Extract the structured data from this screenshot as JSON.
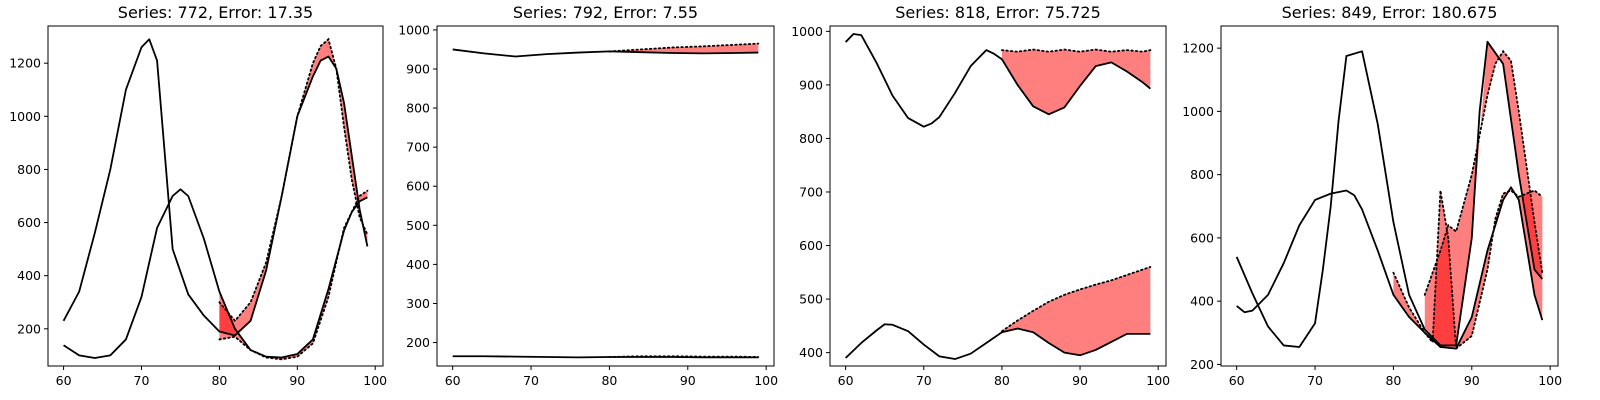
{
  "chart_data": [
    {
      "type": "line",
      "title": "Series: 772, Error: 17.35",
      "xlim": [
        58,
        101
      ],
      "ylim": [
        60,
        1340
      ],
      "xticks": [
        60,
        70,
        80,
        90,
        100
      ],
      "yticks": [
        200,
        400,
        600,
        800,
        1000,
        1200
      ],
      "series": [
        {
          "role": "actual",
          "x": [
            60,
            62,
            64,
            66,
            68,
            70,
            71,
            72,
            74,
            76,
            78,
            80,
            82,
            84,
            86,
            88,
            90,
            92,
            93,
            94,
            95,
            96,
            97,
            98,
            99
          ],
          "values": [
            230,
            340,
            560,
            800,
            1100,
            1260,
            1290,
            1210,
            500,
            330,
            250,
            190,
            175,
            230,
            420,
            700,
            1000,
            1150,
            1210,
            1225,
            1180,
            1050,
            850,
            650,
            510
          ]
        },
        {
          "role": "actual",
          "x": [
            60,
            62,
            64,
            66,
            68,
            70,
            72,
            74,
            75,
            76,
            78,
            80,
            82,
            84,
            86,
            88,
            90,
            92,
            94,
            96,
            97,
            98,
            99
          ],
          "values": [
            138,
            100,
            90,
            100,
            160,
            320,
            580,
            700,
            725,
            700,
            540,
            340,
            200,
            120,
            95,
            92,
            105,
            160,
            350,
            570,
            640,
            680,
            695
          ]
        },
        {
          "role": "forecast",
          "x": [
            80,
            81,
            82,
            84,
            86,
            88,
            90,
            92,
            93,
            94,
            95,
            96,
            97,
            98,
            99
          ],
          "values": [
            300,
            265,
            230,
            300,
            450,
            700,
            1000,
            1200,
            1265,
            1290,
            1180,
            960,
            760,
            620,
            555
          ],
          "base_series": 0
        },
        {
          "role": "forecast",
          "x": [
            80,
            82,
            84,
            86,
            88,
            90,
            92,
            94,
            96,
            97,
            98,
            99
          ],
          "values": [
            160,
            170,
            120,
            92,
            85,
            95,
            145,
            320,
            580,
            640,
            700,
            720
          ],
          "base_series": 1
        }
      ]
    },
    {
      "type": "line",
      "title": "Series: 792, Error: 7.55",
      "xlim": [
        58,
        101
      ],
      "ylim": [
        140,
        1010
      ],
      "xticks": [
        60,
        70,
        80,
        90,
        100
      ],
      "yticks": [
        200,
        300,
        400,
        500,
        600,
        700,
        800,
        900,
        1000
      ],
      "series": [
        {
          "role": "actual",
          "x": [
            60,
            64,
            68,
            72,
            76,
            80,
            84,
            88,
            92,
            96,
            99
          ],
          "values": [
            950,
            940,
            932,
            938,
            942,
            945,
            943,
            941,
            940,
            941,
            942
          ]
        },
        {
          "role": "actual",
          "x": [
            60,
            64,
            68,
            72,
            76,
            80,
            84,
            88,
            92,
            96,
            99
          ],
          "values": [
            165,
            165,
            164,
            163,
            162,
            163,
            163,
            163,
            162,
            162,
            162
          ]
        },
        {
          "role": "forecast",
          "x": [
            80,
            84,
            88,
            92,
            96,
            99
          ],
          "values": [
            945,
            950,
            955,
            958,
            962,
            965
          ],
          "base_series": 0
        },
        {
          "role": "forecast",
          "x": [
            80,
            84,
            88,
            92,
            96,
            99
          ],
          "values": [
            163,
            165,
            165,
            164,
            164,
            163
          ],
          "base_series": 1
        }
      ]
    },
    {
      "type": "line",
      "title": "Series: 818, Error: 75.725",
      "xlim": [
        58,
        101
      ],
      "ylim": [
        375,
        1010
      ],
      "xticks": [
        60,
        70,
        80,
        90,
        100
      ],
      "yticks": [
        400,
        500,
        600,
        700,
        800,
        900,
        1000
      ],
      "series": [
        {
          "role": "actual",
          "x": [
            60,
            61,
            62,
            64,
            66,
            68,
            70,
            71,
            72,
            74,
            76,
            78,
            79,
            80,
            82,
            84,
            86,
            88,
            90,
            92,
            94,
            96,
            98,
            99
          ],
          "values": [
            980,
            995,
            993,
            940,
            880,
            838,
            822,
            828,
            840,
            885,
            935,
            965,
            958,
            948,
            900,
            860,
            845,
            858,
            898,
            935,
            942,
            925,
            905,
            893
          ]
        },
        {
          "role": "actual",
          "x": [
            60,
            62,
            64,
            65,
            66,
            68,
            70,
            72,
            74,
            76,
            78,
            80,
            82,
            84,
            86,
            88,
            90,
            92,
            94,
            96,
            98,
            99
          ],
          "values": [
            390,
            418,
            442,
            453,
            452,
            440,
            415,
            393,
            388,
            398,
            418,
            438,
            445,
            438,
            418,
            400,
            395,
            405,
            420,
            435,
            435,
            435
          ]
        },
        {
          "role": "forecast",
          "x": [
            80,
            82,
            84,
            86,
            88,
            90,
            92,
            94,
            96,
            98,
            99
          ],
          "values": [
            965,
            962,
            966,
            962,
            966,
            962,
            966,
            962,
            965,
            962,
            965
          ],
          "base_series": 0
        },
        {
          "role": "forecast",
          "x": [
            80,
            82,
            84,
            86,
            88,
            90,
            92,
            94,
            96,
            98,
            99
          ],
          "values": [
            440,
            460,
            478,
            495,
            508,
            518,
            527,
            535,
            545,
            555,
            560
          ],
          "base_series": 1
        }
      ]
    },
    {
      "type": "line",
      "title": "Series: 849, Error: 180.675",
      "xlim": [
        58,
        101
      ],
      "ylim": [
        195,
        1270
      ],
      "xticks": [
        60,
        70,
        80,
        90,
        100
      ],
      "yticks": [
        200,
        400,
        600,
        800,
        1000,
        1200
      ],
      "series": [
        {
          "role": "actual",
          "x": [
            60,
            62,
            64,
            66,
            68,
            70,
            71,
            72,
            73,
            74,
            76,
            78,
            80,
            82,
            84,
            86,
            88,
            90,
            91,
            92,
            94,
            96,
            98,
            99
          ],
          "values": [
            540,
            425,
            320,
            260,
            255,
            330,
            500,
            700,
            970,
            1175,
            1190,
            960,
            650,
            420,
            310,
            260,
            260,
            600,
            1000,
            1220,
            1150,
            800,
            500,
            470
          ]
        },
        {
          "role": "actual",
          "x": [
            60,
            61,
            62,
            64,
            66,
            68,
            70,
            72,
            74,
            75,
            76,
            78,
            80,
            82,
            84,
            86,
            88,
            90,
            92,
            94,
            95,
            96,
            98,
            99
          ],
          "values": [
            385,
            365,
            370,
            420,
            520,
            640,
            720,
            740,
            750,
            735,
            690,
            560,
            420,
            350,
            300,
            255,
            250,
            350,
            560,
            720,
            760,
            720,
            420,
            340
          ]
        },
        {
          "role": "forecast",
          "x": [
            80,
            82,
            84,
            85,
            86,
            87,
            88,
            90,
            92,
            93,
            94,
            95,
            96,
            97,
            98,
            99
          ],
          "values": [
            490,
            380,
            300,
            270,
            750,
            600,
            250,
            290,
            500,
            660,
            740,
            750,
            730,
            740,
            750,
            730
          ],
          "base_series": 1
        },
        {
          "role": "forecast",
          "x": [
            84,
            86,
            87,
            88,
            90,
            92,
            93,
            94,
            95,
            96,
            98,
            99
          ],
          "values": [
            420,
            560,
            640,
            620,
            800,
            1050,
            1150,
            1190,
            1160,
            1000,
            650,
            490
          ],
          "base_series": 0
        }
      ]
    }
  ]
}
